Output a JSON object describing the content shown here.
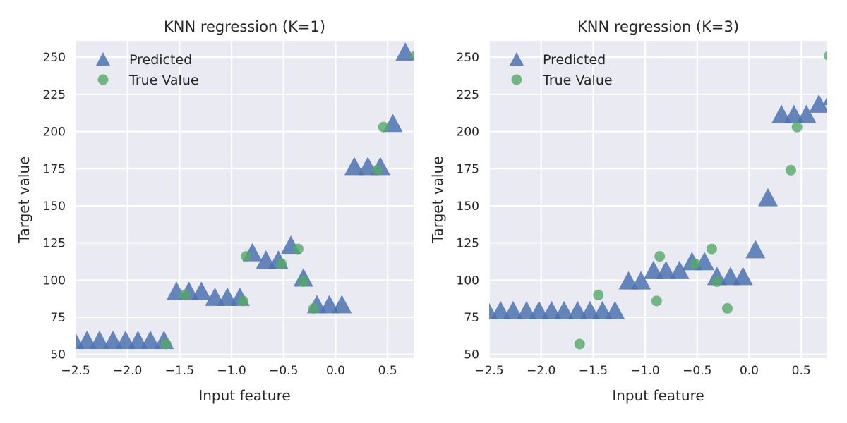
{
  "chart_data": [
    {
      "type": "scatter",
      "title": "KNN regression (K=1)",
      "xlabel": "Input feature",
      "ylabel": "Target value",
      "xlim": [
        -2.5,
        0.75
      ],
      "ylim": [
        47.5,
        261
      ],
      "xticks": [
        -2.5,
        -2.0,
        -1.5,
        -1.0,
        -0.5,
        0.0,
        0.5
      ],
      "xtick_labels": [
        "−2.5",
        "−2.0",
        "−1.5",
        "−1.0",
        "−0.5",
        "0.0",
        "0.5"
      ],
      "yticks": [
        50,
        75,
        100,
        125,
        150,
        175,
        200,
        225,
        250
      ],
      "grid": true,
      "legend": {
        "position": "top-left",
        "entries": [
          "Predicted",
          "True Value"
        ]
      },
      "series": [
        {
          "name": "Predicted",
          "marker": "triangle",
          "color": "#4c72b0",
          "x": [
            -2.51,
            -2.39,
            -2.27,
            -2.14,
            -2.02,
            -1.9,
            -1.78,
            -1.65,
            -1.53,
            -1.41,
            -1.29,
            -1.16,
            -1.04,
            -0.92,
            -0.8,
            -0.67,
            -0.55,
            -0.43,
            -0.31,
            -0.18,
            -0.06,
            0.06,
            0.18,
            0.31,
            0.43,
            0.55,
            0.67
          ],
          "y": [
            57,
            57,
            57,
            57,
            57,
            57,
            57,
            57,
            90,
            90,
            90,
            86,
            86,
            86,
            116,
            111,
            111,
            121,
            99,
            81,
            81,
            81,
            174,
            174,
            174,
            203,
            251
          ]
        },
        {
          "name": "True Value",
          "marker": "circle",
          "color": "#55a868",
          "x": [
            -1.63,
            -1.45,
            -0.89,
            -0.86,
            -0.52,
            -0.36,
            -0.31,
            -0.21,
            0.4,
            0.46,
            0.77
          ],
          "y": [
            57,
            90,
            86,
            116,
            111,
            121,
            99,
            81,
            174,
            203,
            251
          ]
        }
      ]
    },
    {
      "type": "scatter",
      "title": "KNN regression (K=3)",
      "xlabel": "Input feature",
      "ylabel": "Target value",
      "xlim": [
        -2.5,
        0.75
      ],
      "ylim": [
        47.5,
        261
      ],
      "xticks": [
        -2.5,
        -2.0,
        -1.5,
        -1.0,
        -0.5,
        0.0,
        0.5
      ],
      "xtick_labels": [
        "−2.5",
        "−2.0",
        "−1.5",
        "−1.0",
        "−0.5",
        "0.0",
        "0.5"
      ],
      "yticks": [
        50,
        75,
        100,
        125,
        150,
        175,
        200,
        225,
        250
      ],
      "grid": true,
      "legend": {
        "position": "top-left",
        "entries": [
          "Predicted",
          "True Value"
        ]
      },
      "series": [
        {
          "name": "Predicted",
          "marker": "triangle",
          "color": "#4c72b0",
          "x": [
            -2.51,
            -2.39,
            -2.27,
            -2.14,
            -2.02,
            -1.9,
            -1.78,
            -1.65,
            -1.53,
            -1.41,
            -1.29,
            -1.16,
            -1.04,
            -0.92,
            -0.8,
            -0.67,
            -0.55,
            -0.43,
            -0.31,
            -0.18,
            -0.06,
            0.06,
            0.18,
            0.31,
            0.43,
            0.55,
            0.67,
            0.8
          ],
          "y": [
            77,
            77,
            77,
            77,
            77,
            77,
            77,
            77,
            77,
            77,
            77,
            97,
            97,
            104,
            104,
            104,
            110,
            110,
            100,
            100,
            100,
            118,
            153,
            209,
            209,
            209,
            216,
            221
          ]
        },
        {
          "name": "True Value",
          "marker": "circle",
          "color": "#55a868",
          "x": [
            -1.63,
            -1.45,
            -0.89,
            -0.86,
            -0.52,
            -0.36,
            -0.31,
            -0.21,
            0.4,
            0.46,
            0.77
          ],
          "y": [
            57,
            90,
            86,
            116,
            111,
            121,
            99,
            81,
            174,
            203,
            251
          ]
        }
      ]
    }
  ]
}
